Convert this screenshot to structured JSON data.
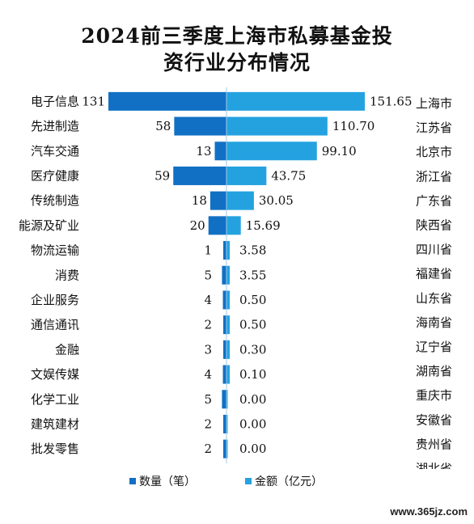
{
  "chart_data": {
    "type": "bar",
    "title_lines": [
      "2024前三季度上海市私募基金投",
      "资行业分布情况"
    ],
    "categories": [
      "电子信息",
      "先进制造",
      "汽车交通",
      "医疗健康",
      "传统制造",
      "能源及矿业",
      "物流运输",
      "消费",
      "企业服务",
      "通信通讯",
      "金融",
      "文娱传媒",
      "化学工业",
      "建筑建材",
      "批发零售"
    ],
    "series": [
      {
        "name": "数量（笔）",
        "values": [
          131,
          58,
          13,
          59,
          18,
          20,
          1,
          5,
          4,
          2,
          3,
          4,
          5,
          2,
          2
        ],
        "labels": [
          "131",
          "58",
          "13",
          "59",
          "18",
          "20",
          "1",
          "5",
          "4",
          "2",
          "3",
          "4",
          "5",
          "2",
          "2"
        ]
      },
      {
        "name": "金额（亿元）",
        "values": [
          151.65,
          110.7,
          99.1,
          43.75,
          30.05,
          15.69,
          3.58,
          3.55,
          0.5,
          0.5,
          0.3,
          0.1,
          0.0,
          0.0,
          0.0
        ],
        "labels": [
          "151.65",
          "110.70",
          "99.10",
          "43.75",
          "30.05",
          "15.69",
          "3.58",
          "3.55",
          "0.50",
          "0.50",
          "0.30",
          "0.10",
          "0.00",
          "0.00",
          "0.00"
        ]
      }
    ],
    "provinces": [
      "上海市",
      "江苏省",
      "北京市",
      "浙江省",
      "广东省",
      "陕西省",
      "四川省",
      "福建省",
      "山东省",
      "海南省",
      "辽宁省",
      "湖南省",
      "重庆市",
      "安徽省",
      "贵州省",
      "湖北省"
    ],
    "colors": {
      "count": "#1170c4",
      "amount": "#24a2e0"
    },
    "legend_position": "bottom",
    "grid": false
  },
  "watermark": "www.365jz.com"
}
